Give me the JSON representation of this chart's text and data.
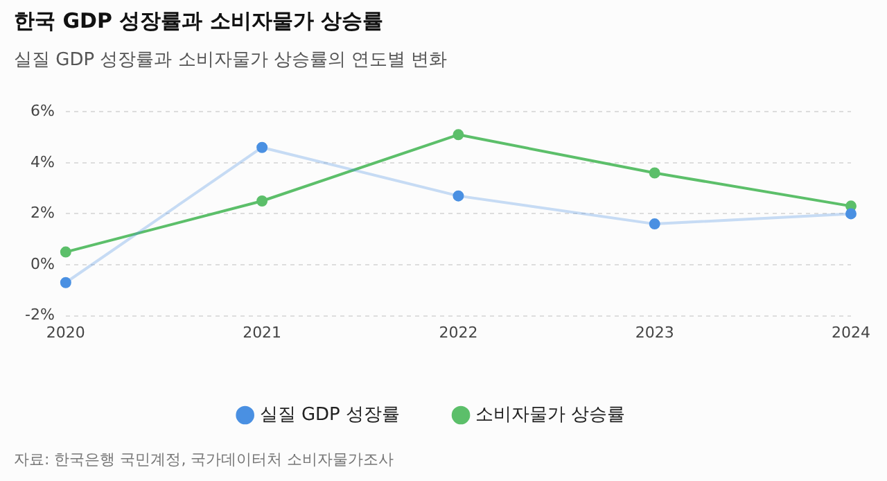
{
  "chart_data": {
    "type": "line",
    "title": "한국 GDP 성장률과 소비자물가 상승률",
    "subtitle": "실질 GDP 성장률과 소비자물가 상승률의 연도별 변화",
    "categories": [
      "2020",
      "2021",
      "2022",
      "2023",
      "2024"
    ],
    "series": [
      {
        "name": "실질 GDP 성장률",
        "color": "#4a90e2",
        "values": [
          -0.7,
          4.6,
          2.7,
          1.6,
          2.0
        ]
      },
      {
        "name": "소비자물가 상승률",
        "color": "#5cbf6a",
        "values": [
          0.5,
          2.5,
          5.1,
          3.6,
          2.3
        ]
      }
    ],
    "ylim": [
      -2,
      6
    ],
    "yticks": [
      {
        "value": -2,
        "label": "-2%"
      },
      {
        "value": 0,
        "label": "0%"
      },
      {
        "value": 2,
        "label": "2%"
      },
      {
        "value": 4,
        "label": "4%"
      },
      {
        "value": 6,
        "label": "6%"
      }
    ],
    "grid": "y",
    "legend": "bottom",
    "marker": "circle",
    "line_style": "solid",
    "annotations": [
      "자료: 한국은행 국민계정, 국가데이터처 소비자물가조사"
    ]
  }
}
